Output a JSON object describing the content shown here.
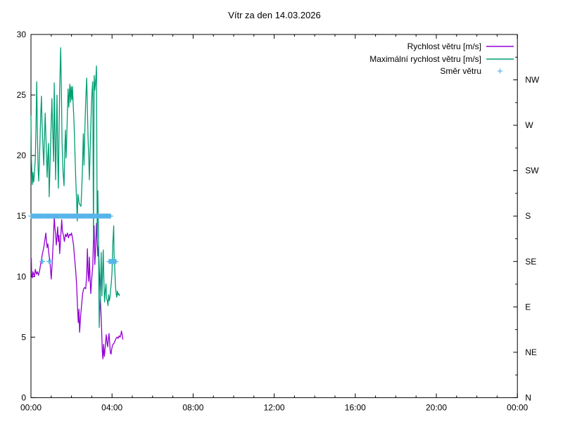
{
  "title": "Vítr za den 14.03.2026",
  "date": "14.03.2026",
  "colors": {
    "speed_line": "#9400d3",
    "max_speed_line": "#009e73",
    "direction_marker": "#56b4e9",
    "axis": "#000000",
    "background": "#ffffff"
  },
  "legend": {
    "entries": [
      {
        "label": "Rychlost větru [m/s]",
        "swatch": "line",
        "color": "#9400d3"
      },
      {
        "label": "Maximální rychlost větru [m/s]",
        "swatch": "line",
        "color": "#009e73"
      },
      {
        "label": "Směr větru",
        "swatch": "plus",
        "color": "#56b4e9"
      }
    ]
  },
  "chart_data": {
    "type": "line",
    "title": "Vítr za den 14.03.2026",
    "x_axis": {
      "unit": "time of day",
      "range_minutes": [
        0,
        1440
      ],
      "minor_tick_every_minutes": 60,
      "major_ticks": [
        {
          "minutes": 0,
          "label": "00:00"
        },
        {
          "minutes": 240,
          "label": "04:00"
        },
        {
          "minutes": 480,
          "label": "08:00"
        },
        {
          "minutes": 720,
          "label": "12:00"
        },
        {
          "minutes": 960,
          "label": "16:00"
        },
        {
          "minutes": 1200,
          "label": "20:00"
        },
        {
          "minutes": 1440,
          "label": "00:00"
        }
      ]
    },
    "y_axis_left": {
      "unit": "m/s",
      "range": [
        0,
        30
      ],
      "major_ticks": [
        0,
        5,
        10,
        15,
        20,
        25,
        30
      ]
    },
    "y_axis_right": {
      "unit": "wind direction",
      "range": [
        0,
        30
      ],
      "labels": [
        {
          "value": 0,
          "label": "N"
        },
        {
          "value": 3.75,
          "label": "NE"
        },
        {
          "value": 7.5,
          "label": "E"
        },
        {
          "value": 11.25,
          "label": "SE"
        },
        {
          "value": 15,
          "label": "S"
        },
        {
          "value": 18.75,
          "label": "SW"
        },
        {
          "value": 22.5,
          "label": "W"
        },
        {
          "value": 26.25,
          "label": "NW"
        }
      ],
      "minor_ticks": [
        1.875,
        5.625,
        9.375,
        13.125,
        16.875,
        20.625,
        24.375,
        28.125
      ]
    },
    "grid": false,
    "legend_position": "top-right-inside",
    "series": [
      {
        "name": "Rychlost větru [m/s]",
        "type": "line",
        "color": "#9400d3",
        "points": [
          [
            0,
            11.3
          ],
          [
            1,
            11.5
          ],
          [
            2,
            10.1
          ],
          [
            4,
            9.9
          ],
          [
            6,
            10.4
          ],
          [
            8,
            10.2
          ],
          [
            10,
            10.0
          ],
          [
            13,
            10.6
          ],
          [
            16,
            10.2
          ],
          [
            19,
            10.4
          ],
          [
            22,
            10.1
          ],
          [
            25,
            10.4
          ],
          [
            28,
            10.9
          ],
          [
            31,
            11.4
          ],
          [
            34,
            11.9
          ],
          [
            38,
            12.4
          ],
          [
            41,
            13.0
          ],
          [
            44,
            13.6
          ],
          [
            46,
            12.9
          ],
          [
            48,
            12.4
          ],
          [
            50,
            12.7
          ],
          [
            53,
            11.9
          ],
          [
            56,
            11.3
          ],
          [
            58,
            10.6
          ],
          [
            60,
            9.8
          ],
          [
            63,
            11.2
          ],
          [
            66,
            12.9
          ],
          [
            69,
            14.9
          ],
          [
            71,
            14.0
          ],
          [
            73,
            13.5
          ],
          [
            75,
            12.6
          ],
          [
            77,
            13.3
          ],
          [
            79,
            14.1
          ],
          [
            81,
            12.9
          ],
          [
            83,
            13.4
          ],
          [
            85,
            11.9
          ],
          [
            88,
            13.2
          ],
          [
            91,
            14.7
          ],
          [
            93,
            13.8
          ],
          [
            96,
            13.4
          ],
          [
            99,
            12.9
          ],
          [
            102,
            13.5
          ],
          [
            105,
            13.3
          ],
          [
            108,
            13.6
          ],
          [
            111,
            13.2
          ],
          [
            114,
            13.5
          ],
          [
            117,
            13.4
          ],
          [
            120,
            13.6
          ],
          [
            123,
            13.2
          ],
          [
            126,
            12.6
          ],
          [
            129,
            11.6
          ],
          [
            132,
            10.6
          ],
          [
            135,
            9.4
          ],
          [
            138,
            7.4
          ],
          [
            140,
            6.2
          ],
          [
            142,
            7.3
          ],
          [
            144,
            5.4
          ],
          [
            147,
            6.8
          ],
          [
            150,
            7.7
          ],
          [
            153,
            8.6
          ],
          [
            156,
            9.0
          ],
          [
            159,
            9.1
          ],
          [
            162,
            9.0
          ],
          [
            165,
            10.1
          ],
          [
            167,
            12.3
          ],
          [
            169,
            10.4
          ],
          [
            171,
            9.6
          ],
          [
            173,
            11.6
          ],
          [
            175,
            9.9
          ],
          [
            177,
            8.6
          ],
          [
            180,
            9.9
          ],
          [
            183,
            10.9
          ],
          [
            185,
            13.0
          ],
          [
            187,
            14.2
          ],
          [
            189,
            11.0
          ],
          [
            191,
            12.1
          ],
          [
            194,
            14.4
          ],
          [
            196,
            12.9
          ],
          [
            198,
            11.7
          ],
          [
            200,
            12.5
          ],
          [
            202,
            10.6
          ],
          [
            204,
            9.4
          ],
          [
            206,
            7.8
          ],
          [
            208,
            6.6
          ],
          [
            210,
            4.9
          ],
          [
            211,
            3.9
          ],
          [
            213,
            3.2
          ],
          [
            215,
            4.4
          ],
          [
            217,
            3.4
          ],
          [
            219,
            3.9
          ],
          [
            221,
            4.6
          ],
          [
            223,
            5.2
          ],
          [
            225,
            4.6
          ],
          [
            227,
            4.2
          ],
          [
            229,
            4.8
          ],
          [
            231,
            5.3
          ],
          [
            233,
            4.6
          ],
          [
            235,
            3.7
          ],
          [
            237,
            3.6
          ],
          [
            239,
            4.0
          ],
          [
            241,
            4.3
          ],
          [
            243,
            4.4
          ],
          [
            246,
            4.5
          ],
          [
            249,
            4.7
          ],
          [
            252,
            4.9
          ],
          [
            255,
            5.0
          ],
          [
            258,
            4.9
          ],
          [
            261,
            5.1
          ],
          [
            264,
            5.0
          ],
          [
            266,
            5.2
          ],
          [
            268,
            5.5
          ],
          [
            270,
            5.2
          ],
          [
            272,
            4.8
          ]
        ]
      },
      {
        "name": "Maximální rychlost větru [m/s]",
        "type": "line",
        "color": "#009e73",
        "points": [
          [
            0,
            23.3
          ],
          [
            1,
            20.0
          ],
          [
            2,
            19.1
          ],
          [
            4,
            17.6
          ],
          [
            6,
            18.6
          ],
          [
            8,
            17.8
          ],
          [
            10,
            18.4
          ],
          [
            13,
            19.8
          ],
          [
            15,
            22.5
          ],
          [
            17,
            26.1
          ],
          [
            19,
            22.0
          ],
          [
            21,
            19.0
          ],
          [
            23,
            17.9
          ],
          [
            25,
            19.6
          ],
          [
            27,
            21.6
          ],
          [
            29,
            23.4
          ],
          [
            31,
            24.9
          ],
          [
            33,
            22.6
          ],
          [
            35,
            21.0
          ],
          [
            38,
            19.2
          ],
          [
            40,
            21.5
          ],
          [
            42,
            23.5
          ],
          [
            44,
            21.8
          ],
          [
            46,
            20.0
          ],
          [
            48,
            18.2
          ],
          [
            50,
            19.9
          ],
          [
            52,
            21.0
          ],
          [
            54,
            16.6
          ],
          [
            56,
            18.8
          ],
          [
            58,
            20.6
          ],
          [
            60,
            22.8
          ],
          [
            62,
            24.7
          ],
          [
            64,
            22.4
          ],
          [
            67,
            19.5
          ],
          [
            69,
            26.0
          ],
          [
            71,
            21.9
          ],
          [
            73,
            18.0
          ],
          [
            75,
            21.4
          ],
          [
            77,
            25.0
          ],
          [
            79,
            20.3
          ],
          [
            81,
            17.3
          ],
          [
            83,
            21.4
          ],
          [
            85,
            25.5
          ],
          [
            88,
            28.9
          ],
          [
            90,
            25.6
          ],
          [
            92,
            21.0
          ],
          [
            95,
            18.6
          ],
          [
            98,
            17.5
          ],
          [
            100,
            20.3
          ],
          [
            102,
            22.1
          ],
          [
            104,
            19.8
          ],
          [
            106,
            21.6
          ],
          [
            108,
            23.6
          ],
          [
            110,
            25.5
          ],
          [
            112,
            24.0
          ],
          [
            115,
            25.9
          ],
          [
            117,
            24.4
          ],
          [
            119,
            25.7
          ],
          [
            121,
            24.6
          ],
          [
            123,
            25.7
          ],
          [
            125,
            24.2
          ],
          [
            127,
            23.0
          ],
          [
            129,
            21.4
          ],
          [
            131,
            19.5
          ],
          [
            133,
            17.8
          ],
          [
            135,
            16.3
          ],
          [
            137,
            14.6
          ],
          [
            139,
            16.8
          ],
          [
            141,
            16.4
          ],
          [
            143,
            16.0
          ],
          [
            146,
            15.9
          ],
          [
            148,
            15.8
          ],
          [
            150,
            17.0
          ],
          [
            152,
            18.6
          ],
          [
            155,
            21.8
          ],
          [
            157,
            19.2
          ],
          [
            160,
            22.6
          ],
          [
            162,
            24.5
          ],
          [
            165,
            26.4
          ],
          [
            167,
            23.8
          ],
          [
            169,
            21.5
          ],
          [
            171,
            19.8
          ],
          [
            173,
            18.0
          ],
          [
            175,
            20.2
          ],
          [
            177,
            22.3
          ],
          [
            179,
            24.2
          ],
          [
            181,
            25.4
          ],
          [
            183,
            26.1
          ],
          [
            185,
            13.0
          ],
          [
            187,
            26.6
          ],
          [
            189,
            25.4
          ],
          [
            191,
            26.0
          ],
          [
            193,
            26.8
          ],
          [
            194,
            27.4
          ],
          [
            196,
            13.2
          ],
          [
            197,
            17.0
          ],
          [
            198,
            17.1
          ],
          [
            200,
            13.2
          ],
          [
            201,
            9.0
          ],
          [
            202,
            5.8
          ],
          [
            204,
            7.5
          ],
          [
            206,
            9.1
          ],
          [
            208,
            12.0
          ],
          [
            210,
            8.4
          ],
          [
            212,
            10.3
          ],
          [
            214,
            12.2
          ],
          [
            216,
            9.5
          ],
          [
            218,
            7.9
          ],
          [
            220,
            8.8
          ],
          [
            222,
            9.4
          ],
          [
            224,
            8.2
          ],
          [
            226,
            8.0
          ],
          [
            228,
            7.6
          ],
          [
            230,
            8.5
          ],
          [
            232,
            8.0
          ],
          [
            234,
            8.3
          ],
          [
            236,
            9.0
          ],
          [
            238,
            9.5
          ],
          [
            240,
            10.4
          ],
          [
            242,
            12.6
          ],
          [
            245,
            14.2
          ],
          [
            246,
            11.8
          ],
          [
            248,
            10.8
          ],
          [
            250,
            9.3
          ],
          [
            252,
            8.6
          ],
          [
            254,
            8.3
          ],
          [
            256,
            8.8
          ],
          [
            258,
            8.5
          ],
          [
            260,
            8.6
          ],
          [
            262,
            8.4
          ]
        ]
      },
      {
        "name": "Směr větru",
        "type": "scatter",
        "marker": "plus",
        "color": "#56b4e9",
        "direction_value_map": {
          "S": 15,
          "SE": 11.25
        },
        "groups": [
          {
            "direction": "S",
            "value": 15,
            "times": [
              0,
              2,
              4,
              6,
              8,
              10,
              12,
              14,
              16,
              18,
              20,
              22,
              24,
              26,
              28,
              30,
              32,
              34,
              36,
              38,
              40,
              42,
              44,
              46,
              48,
              50,
              52,
              54,
              56,
              58,
              60,
              62,
              64,
              66,
              68,
              70,
              72,
              74,
              76,
              78,
              80,
              82,
              84,
              86,
              88,
              90,
              92,
              94,
              96,
              98,
              100,
              102,
              104,
              106,
              108,
              110,
              112,
              114,
              116,
              118,
              120,
              122,
              124,
              126,
              128,
              130,
              132,
              134,
              136,
              138,
              140,
              142,
              144,
              146,
              148,
              150,
              152,
              154,
              156,
              158,
              160,
              162,
              164,
              166,
              168,
              170,
              172,
              174,
              176,
              178,
              180,
              182,
              184,
              186,
              188,
              190,
              192,
              194,
              196,
              198,
              200,
              202,
              204,
              206,
              208,
              210,
              212,
              214,
              216,
              218,
              220,
              222,
              224,
              226,
              228,
              230,
              232,
              234,
              236
            ]
          },
          {
            "direction": "SE",
            "value": 11.25,
            "times": [
              32,
              35,
              53,
              57,
              231,
              233,
              235,
              237,
              239,
              241,
              243,
              244,
              245,
              246,
              247,
              248,
              250,
              252
            ]
          }
        ]
      }
    ]
  }
}
